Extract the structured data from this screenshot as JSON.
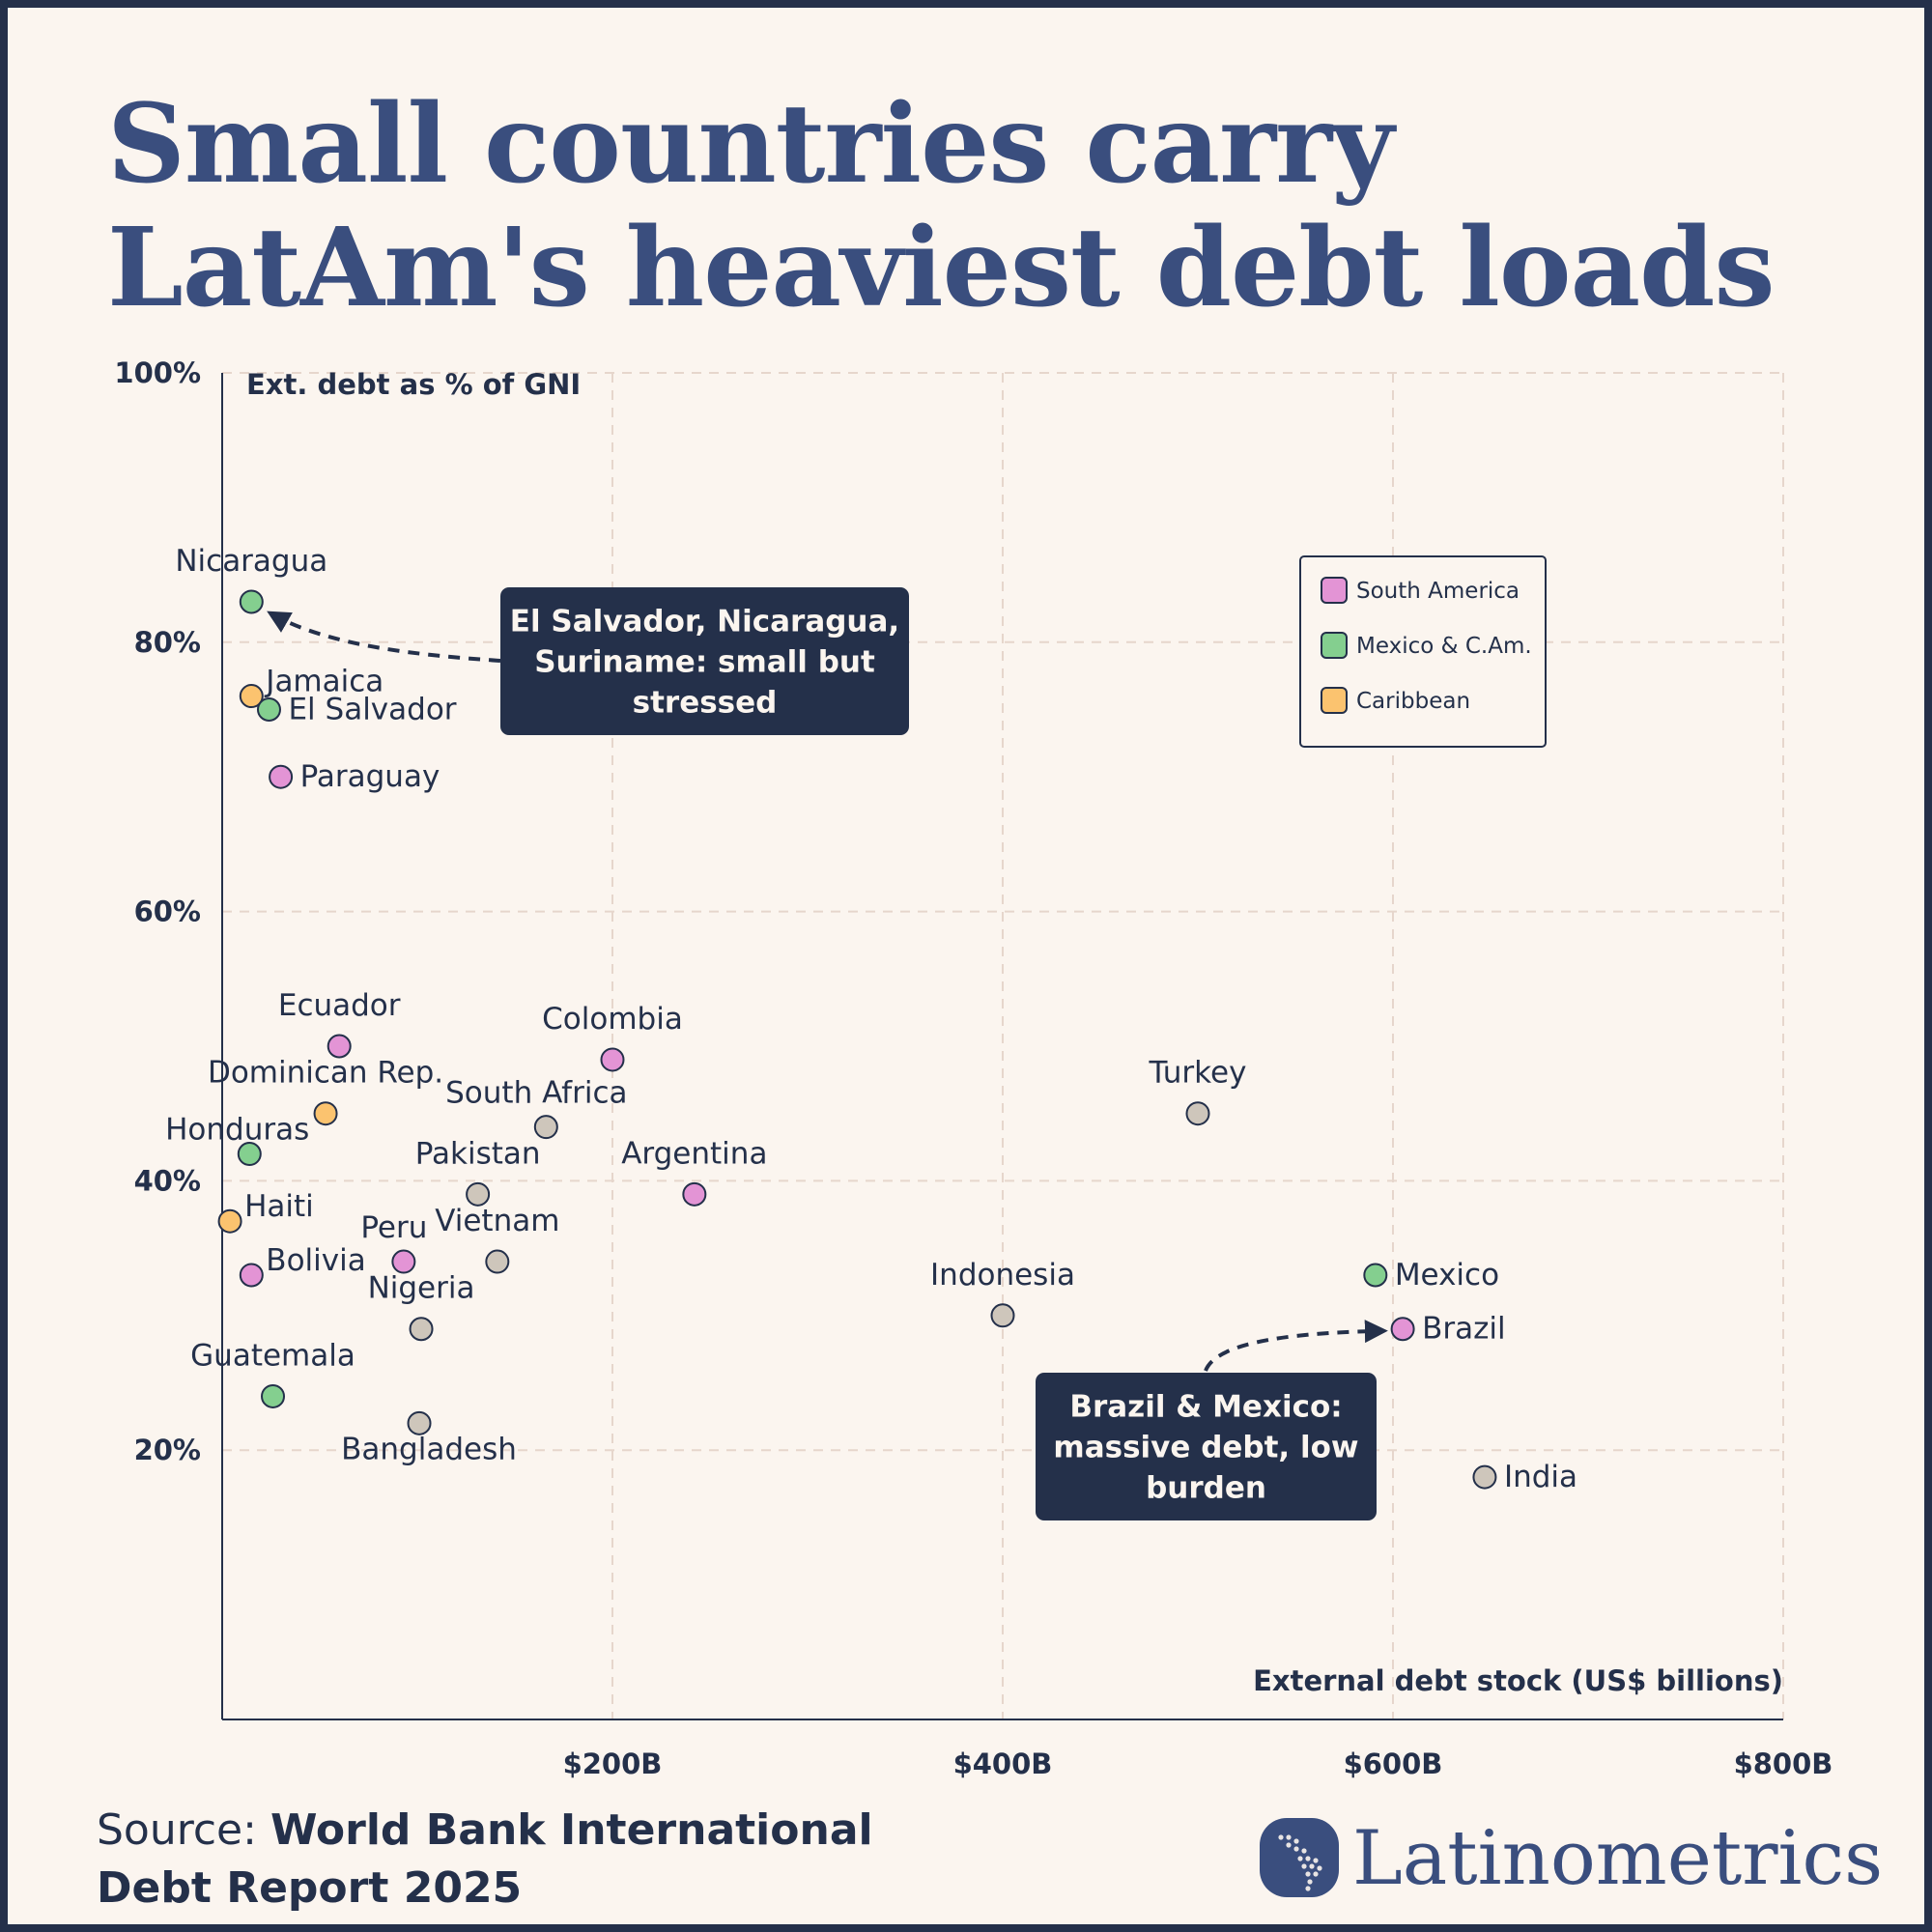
{
  "title": {
    "line1": "Small countries carry",
    "line2": "LatAm's heaviest debt loads"
  },
  "source": {
    "prefix": "Source: ",
    "name_line1": "World Bank International",
    "name_line2": "Debt Report 2025"
  },
  "brand": {
    "name": "Latinometrics",
    "color": "#3a4e7e"
  },
  "chart_data": {
    "type": "scatter",
    "title": "Small countries carry LatAm's heaviest debt loads",
    "xlabel": "External debt stock (US$ billions)",
    "ylabel": "Ext. debt as % of GNI",
    "xlim": [
      0,
      800
    ],
    "ylim": [
      0,
      100
    ],
    "x_ticks": [
      {
        "value": 200,
        "label": "$200B"
      },
      {
        "value": 400,
        "label": "$400B"
      },
      {
        "value": 600,
        "label": "$600B"
      },
      {
        "value": 800,
        "label": "$800B"
      }
    ],
    "y_ticks": [
      {
        "value": 20,
        "label": "20%"
      },
      {
        "value": 40,
        "label": "40%"
      },
      {
        "value": 60,
        "label": "60%"
      },
      {
        "value": 80,
        "label": "80%"
      },
      {
        "value": 100,
        "label": "100%"
      }
    ],
    "grid": true,
    "legend_position": "top-right",
    "groups": [
      {
        "key": "south_america",
        "name": "South America",
        "color": "#e394d5"
      },
      {
        "key": "mexico_cam",
        "name": "Mexico & C.Am.",
        "color": "#84cf8f"
      },
      {
        "key": "caribbean",
        "name": "Caribbean",
        "color": "#fbc36f"
      },
      {
        "key": "other",
        "color": "#cec6bb"
      }
    ],
    "points": [
      {
        "label": "Nicaragua",
        "x": 15,
        "y": 83,
        "group": "mexico_cam",
        "label_pos": "above"
      },
      {
        "label": "Jamaica",
        "x": 15,
        "y": 76,
        "group": "caribbean",
        "label_pos": "upper-right"
      },
      {
        "label": "El Salvador",
        "x": 24,
        "y": 75,
        "group": "mexico_cam",
        "label_pos": "right"
      },
      {
        "label": "Paraguay",
        "x": 30,
        "y": 70,
        "group": "south_america",
        "label_pos": "right"
      },
      {
        "label": "Ecuador",
        "x": 60,
        "y": 50,
        "group": "south_america",
        "label_pos": "above"
      },
      {
        "label": "Colombia",
        "x": 200,
        "y": 49,
        "group": "south_america",
        "label_pos": "above"
      },
      {
        "label": "Dominican Rep.",
        "x": 53,
        "y": 45,
        "group": "caribbean",
        "label_pos": "above"
      },
      {
        "label": "South Africa",
        "x": 166,
        "y": 44,
        "group": "other",
        "label_pos": "above-left"
      },
      {
        "label": "Turkey",
        "x": 500,
        "y": 45,
        "group": "other",
        "label_pos": "above"
      },
      {
        "label": "Honduras",
        "x": 14,
        "y": 42,
        "group": "mexico_cam",
        "label_pos": "upper-left"
      },
      {
        "label": "Pakistan",
        "x": 131,
        "y": 39,
        "group": "other",
        "label_pos": "above"
      },
      {
        "label": "Argentina",
        "x": 242,
        "y": 39,
        "group": "south_america",
        "label_pos": "above"
      },
      {
        "label": "Haiti",
        "x": 4,
        "y": 37,
        "group": "caribbean",
        "label_pos": "upper-right"
      },
      {
        "label": "Peru",
        "x": 93,
        "y": 34,
        "group": "south_america",
        "label_pos": "above-left"
      },
      {
        "label": "Vietnam",
        "x": 141,
        "y": 34,
        "group": "other",
        "label_pos": "above"
      },
      {
        "label": "Bolivia",
        "x": 15,
        "y": 33,
        "group": "south_america",
        "label_pos": "upper-right"
      },
      {
        "label": "Mexico",
        "x": 591,
        "y": 33,
        "group": "mexico_cam",
        "label_pos": "right"
      },
      {
        "label": "Indonesia",
        "x": 400,
        "y": 30,
        "group": "other",
        "label_pos": "above"
      },
      {
        "label": "Nigeria",
        "x": 102,
        "y": 29,
        "group": "other",
        "label_pos": "above"
      },
      {
        "label": "Brazil",
        "x": 605,
        "y": 29,
        "group": "south_america",
        "label_pos": "right"
      },
      {
        "label": "Guatemala",
        "x": 26,
        "y": 24,
        "group": "mexico_cam",
        "label_pos": "above"
      },
      {
        "label": "Bangladesh",
        "x": 101,
        "y": 22,
        "group": "other",
        "label_pos": "below"
      },
      {
        "label": "India",
        "x": 647,
        "y": 18,
        "group": "other",
        "label_pos": "right"
      }
    ],
    "annotations": [
      {
        "lines": [
          "El Salvador, Nicaragua,",
          "Suriname: small but",
          "stressed"
        ],
        "points_to": "Nicaragua"
      },
      {
        "lines": [
          "Brazil & Mexico:",
          "massive debt, low",
          "burden"
        ],
        "points_to": "Brazil"
      }
    ]
  }
}
